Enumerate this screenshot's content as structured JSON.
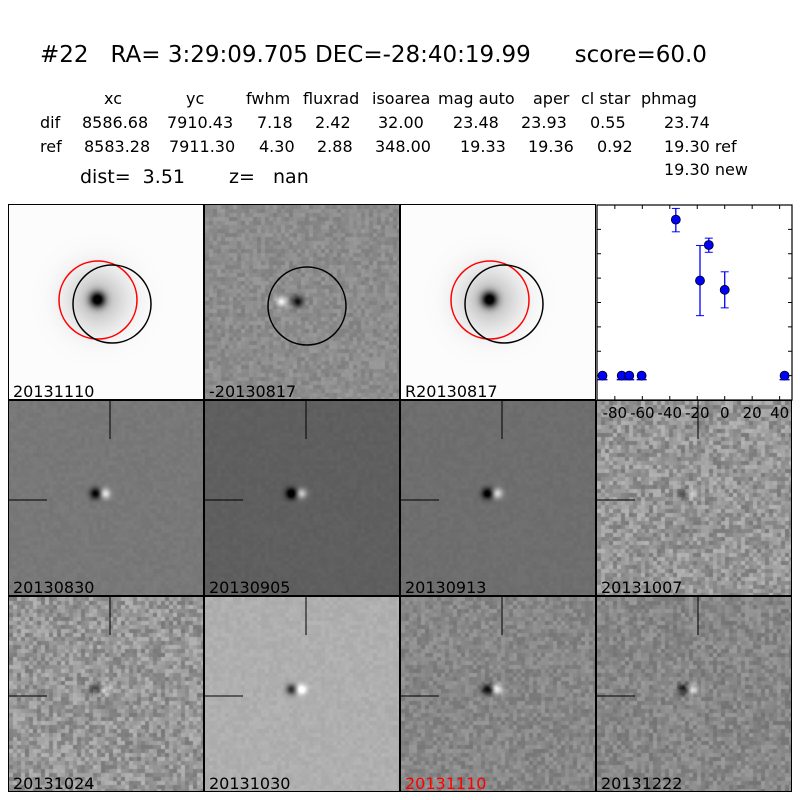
{
  "header": {
    "title": "#22   RA= 3:29:09.705 DEC=-28:40:19.99      score=60.0",
    "columns": [
      "xc",
      "yc",
      "fwhm",
      "fluxrad",
      "isoarea",
      "mag auto",
      "aper",
      "cl star",
      "phmag"
    ],
    "rows": [
      {
        "label": "dif",
        "values": [
          "8586.68",
          "7910.43",
          "7.18",
          "2.42",
          "32.00",
          "23.48",
          "23.93",
          "0.55",
          "23.74"
        ]
      },
      {
        "label": "ref",
        "values": [
          "8583.28",
          "7911.30",
          "4.30",
          "2.88",
          "348.00",
          "19.33",
          "19.36",
          "0.92",
          "19.30 ref"
        ]
      }
    ],
    "extra_phmag": "19.30 new",
    "dist": "dist=  3.51",
    "z": "z=   nan"
  },
  "panels": [
    {
      "label": "20131110",
      "kind": "new"
    },
    {
      "label": "-20130817",
      "kind": "diff"
    },
    {
      "label": "R20130817",
      "kind": "ref"
    },
    {
      "label": "20130830",
      "kind": "stamp"
    },
    {
      "label": "20130905",
      "kind": "stamp"
    },
    {
      "label": "20130913",
      "kind": "stamp"
    },
    {
      "label": "20131007",
      "kind": "stamp"
    },
    {
      "label": "20131024",
      "kind": "stamp"
    },
    {
      "label": "20131030",
      "kind": "stamp"
    },
    {
      "label": "20131110",
      "kind": "stamp",
      "label_color": "#ff0000"
    },
    {
      "label": "20131222",
      "kind": "stamp"
    }
  ],
  "chart_data": {
    "type": "scatter",
    "xlim": [
      -93,
      49
    ],
    "ylim": [
      26.0,
      22.0
    ],
    "y_inverted": true,
    "xticks": [
      -80,
      -60,
      -40,
      -20,
      0,
      20,
      40
    ],
    "yticks": [
      "22.0",
      "22.5",
      "23.0",
      "23.5",
      "24.0",
      "24.5",
      "25.0",
      "25.5",
      "26.0"
    ],
    "color": "#0000ff",
    "points": [
      {
        "x": -89,
        "y": 25.5,
        "limit": true
      },
      {
        "x": -75,
        "y": 25.5,
        "limit": true
      },
      {
        "x": -69.5,
        "y": 25.5,
        "limit": true
      },
      {
        "x": -60.5,
        "y": 25.5,
        "limit": true
      },
      {
        "x": -35.6,
        "y": 22.3,
        "err_lo": 0.25,
        "err_hi": 0.23
      },
      {
        "x": -18,
        "y": 23.55,
        "err_lo": 0.72,
        "err_hi": 0.72
      },
      {
        "x": -11.6,
        "y": 22.82,
        "err_lo": 0.15,
        "err_hi": 0.14
      },
      {
        "x": 0,
        "y": 23.74,
        "err_lo": 0.37,
        "err_hi": 0.37
      },
      {
        "x": 43.6,
        "y": 25.5,
        "limit": true
      }
    ]
  }
}
